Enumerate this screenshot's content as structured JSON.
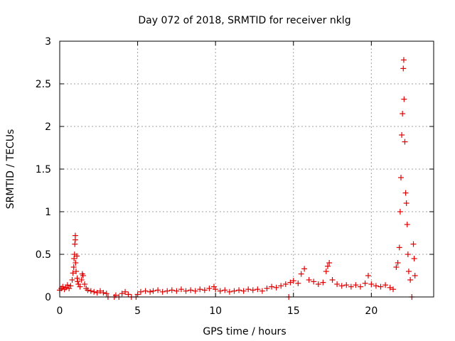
{
  "chart_data": {
    "type": "scatter",
    "title": "Day 072 of 2018, SRMTID for receiver nklg",
    "xlabel": "GPS time / hours",
    "ylabel": "SRMTID / TECUs",
    "xlim": [
      0,
      24
    ],
    "ylim": [
      0,
      3
    ],
    "xticks": [
      0,
      5,
      10,
      15,
      20
    ],
    "yticks": [
      0,
      0.5,
      1,
      1.5,
      2,
      2.5,
      3
    ],
    "xtick_labels": [
      "0",
      "5",
      "10",
      "15",
      "20"
    ],
    "ytick_labels": [
      "0",
      "0.5",
      "1",
      "1.5",
      "2",
      "2.5",
      "3"
    ],
    "grid": true,
    "marker": "+",
    "color": "#e00000",
    "series": [
      {
        "name": "SRMTID",
        "points": [
          [
            0.0,
            0.08
          ],
          [
            0.1,
            0.1
          ],
          [
            0.2,
            0.12
          ],
          [
            0.3,
            0.09
          ],
          [
            0.4,
            0.11
          ],
          [
            0.5,
            0.14
          ],
          [
            0.6,
            0.1
          ],
          [
            0.7,
            0.13
          ],
          [
            0.8,
            0.2
          ],
          [
            0.85,
            0.28
          ],
          [
            0.9,
            0.35
          ],
          [
            0.92,
            0.45
          ],
          [
            0.95,
            0.5
          ],
          [
            0.97,
            0.62
          ],
          [
            1.0,
            0.67
          ],
          [
            1.0,
            0.72
          ],
          [
            1.02,
            0.4
          ],
          [
            1.05,
            0.3
          ],
          [
            1.1,
            0.48
          ],
          [
            1.12,
            0.22
          ],
          [
            1.15,
            0.18
          ],
          [
            1.2,
            0.15
          ],
          [
            1.3,
            0.12
          ],
          [
            1.4,
            0.2
          ],
          [
            1.45,
            0.27
          ],
          [
            1.5,
            0.25
          ],
          [
            1.6,
            0.15
          ],
          [
            1.7,
            0.1
          ],
          [
            1.8,
            0.08
          ],
          [
            2.0,
            0.07
          ],
          [
            2.2,
            0.06
          ],
          [
            2.4,
            0.05
          ],
          [
            2.6,
            0.07
          ],
          [
            2.8,
            0.05
          ],
          [
            3.0,
            0.04
          ],
          [
            3.1,
            0.0
          ],
          [
            3.5,
            0.0
          ],
          [
            3.6,
            0.02
          ],
          [
            3.8,
            0.0
          ],
          [
            4.0,
            0.04
          ],
          [
            4.2,
            0.06
          ],
          [
            4.4,
            0.03
          ],
          [
            4.6,
            0.0
          ],
          [
            4.9,
            0.0
          ],
          [
            5.0,
            0.03
          ],
          [
            5.2,
            0.06
          ],
          [
            5.5,
            0.07
          ],
          [
            5.8,
            0.06
          ],
          [
            6.0,
            0.07
          ],
          [
            6.3,
            0.08
          ],
          [
            6.6,
            0.06
          ],
          [
            6.9,
            0.07
          ],
          [
            7.2,
            0.08
          ],
          [
            7.5,
            0.07
          ],
          [
            7.8,
            0.09
          ],
          [
            8.1,
            0.07
          ],
          [
            8.4,
            0.08
          ],
          [
            8.7,
            0.07
          ],
          [
            9.0,
            0.09
          ],
          [
            9.3,
            0.08
          ],
          [
            9.6,
            0.1
          ],
          [
            9.9,
            0.12
          ],
          [
            10.0,
            0.09
          ],
          [
            10.3,
            0.07
          ],
          [
            10.6,
            0.08
          ],
          [
            10.9,
            0.06
          ],
          [
            11.2,
            0.07
          ],
          [
            11.5,
            0.08
          ],
          [
            11.8,
            0.07
          ],
          [
            12.1,
            0.09
          ],
          [
            12.4,
            0.08
          ],
          [
            12.7,
            0.09
          ],
          [
            13.0,
            0.07
          ],
          [
            13.3,
            0.1
          ],
          [
            13.6,
            0.12
          ],
          [
            13.9,
            0.11
          ],
          [
            14.2,
            0.13
          ],
          [
            14.5,
            0.15
          ],
          [
            14.7,
            0.0
          ],
          [
            14.8,
            0.17
          ],
          [
            15.0,
            0.19
          ],
          [
            15.3,
            0.16
          ],
          [
            15.5,
            0.27
          ],
          [
            15.7,
            0.33
          ],
          [
            16.0,
            0.2
          ],
          [
            16.3,
            0.18
          ],
          [
            16.6,
            0.15
          ],
          [
            16.9,
            0.17
          ],
          [
            17.1,
            0.3
          ],
          [
            17.2,
            0.36
          ],
          [
            17.3,
            0.4
          ],
          [
            17.5,
            0.2
          ],
          [
            17.8,
            0.15
          ],
          [
            18.1,
            0.13
          ],
          [
            18.4,
            0.14
          ],
          [
            18.7,
            0.12
          ],
          [
            19.0,
            0.14
          ],
          [
            19.3,
            0.12
          ],
          [
            19.6,
            0.16
          ],
          [
            19.8,
            0.25
          ],
          [
            20.0,
            0.15
          ],
          [
            20.3,
            0.13
          ],
          [
            20.6,
            0.12
          ],
          [
            20.9,
            0.14
          ],
          [
            21.2,
            0.11
          ],
          [
            21.4,
            0.09
          ],
          [
            21.6,
            0.35
          ],
          [
            21.7,
            0.4
          ],
          [
            21.8,
            0.58
          ],
          [
            21.85,
            1.0
          ],
          [
            21.9,
            1.4
          ],
          [
            21.95,
            1.9
          ],
          [
            22.0,
            2.15
          ],
          [
            22.05,
            2.68
          ],
          [
            22.08,
            2.78
          ],
          [
            22.1,
            2.32
          ],
          [
            22.15,
            1.82
          ],
          [
            22.2,
            1.22
          ],
          [
            22.25,
            1.1
          ],
          [
            22.3,
            0.85
          ],
          [
            22.35,
            0.5
          ],
          [
            22.4,
            0.3
          ],
          [
            22.5,
            0.2
          ],
          [
            22.6,
            0.0
          ],
          [
            22.7,
            0.62
          ],
          [
            22.75,
            0.45
          ],
          [
            22.8,
            0.25
          ]
        ]
      }
    ]
  }
}
